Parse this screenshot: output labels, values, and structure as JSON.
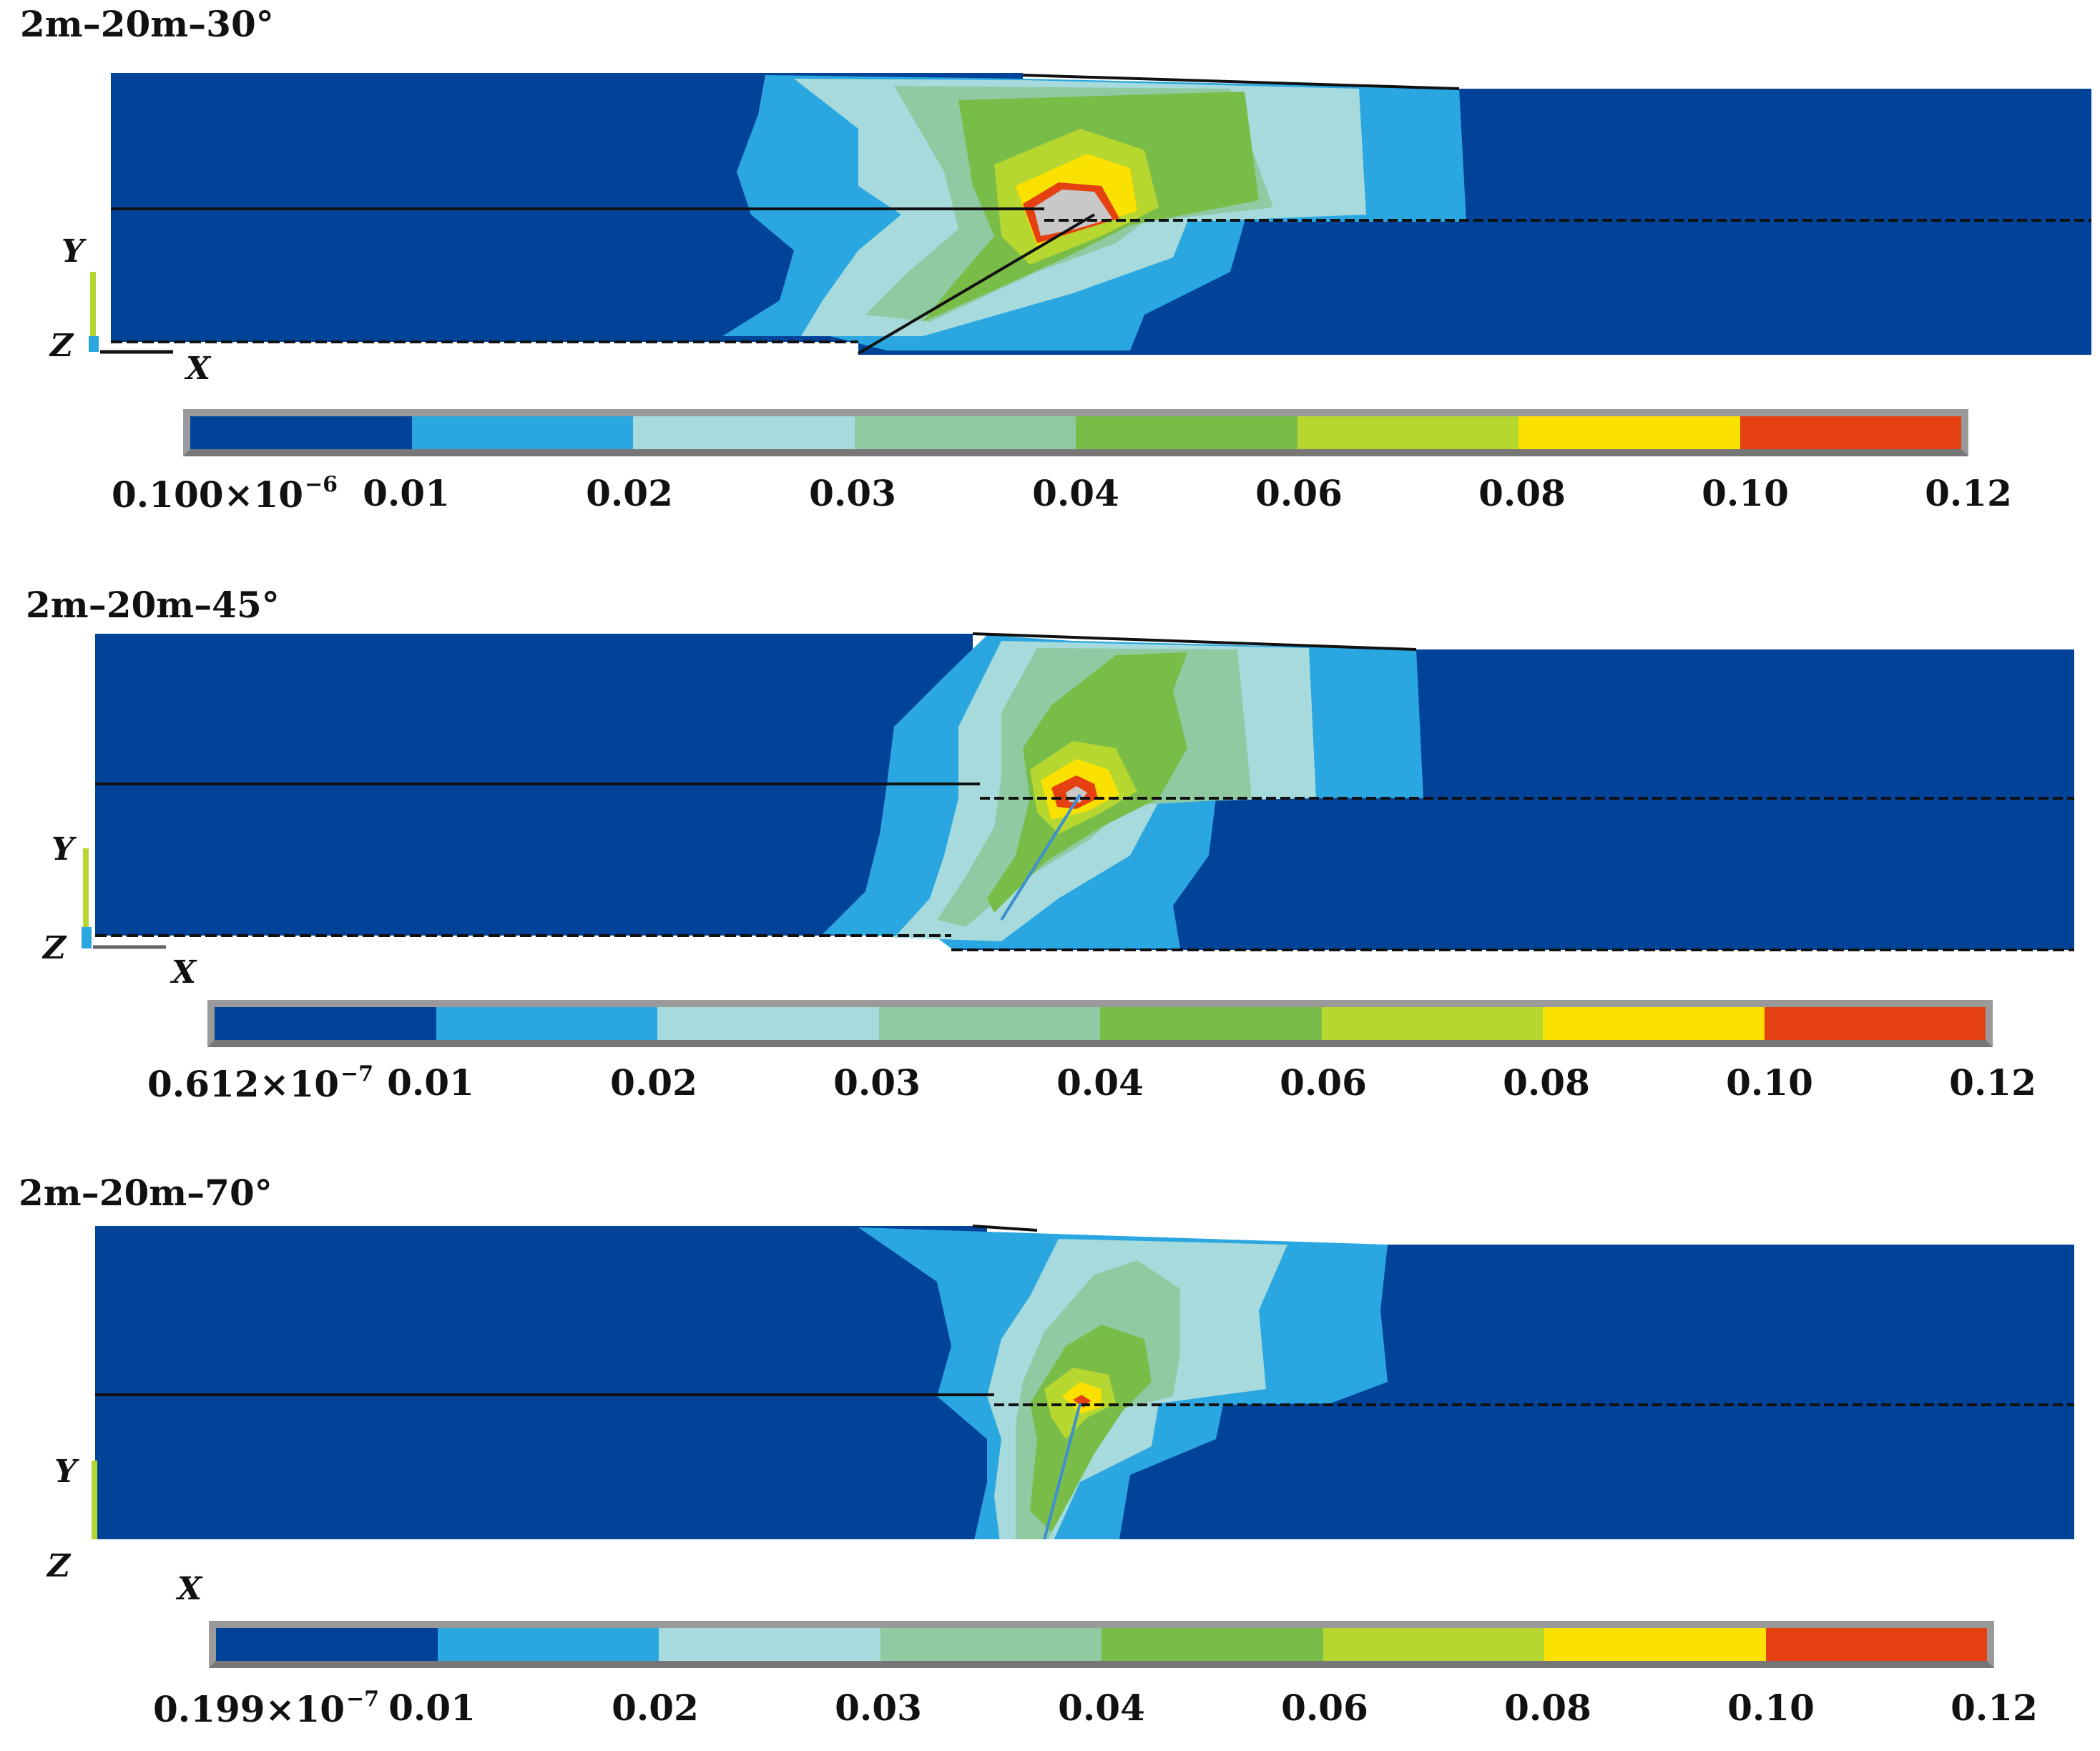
{
  "colors": {
    "background": "#02439a",
    "contour_levels": [
      "#02439a",
      "#2aa7e0",
      "#a6dadc",
      "#8fcaa3",
      "#79bd48",
      "#b6d630",
      "#fbe100",
      "#e54012"
    ],
    "peak": "#c8c8c8"
  },
  "legend": {
    "ticks": [
      "0.01",
      "0.02",
      "0.03",
      "0.04",
      "0.06",
      "0.08",
      "0.10",
      "0.12"
    ]
  },
  "panels": [
    {
      "title": "2m–20m–30°",
      "min_mantissa": "0.100×10",
      "min_exponent": "−6",
      "axis_y": "Y",
      "axis_z": "Z",
      "axis_x": "X"
    },
    {
      "title": "2m–20m–45°",
      "min_mantissa": "0.612×10",
      "min_exponent": "−7",
      "axis_y": "Y",
      "axis_z": "Z",
      "axis_x": "X"
    },
    {
      "title": "2m–20m–70°",
      "min_mantissa": "0.199×10",
      "min_exponent": "−7",
      "axis_y": "Y",
      "axis_z": "Z",
      "axis_x": "X"
    }
  ]
}
